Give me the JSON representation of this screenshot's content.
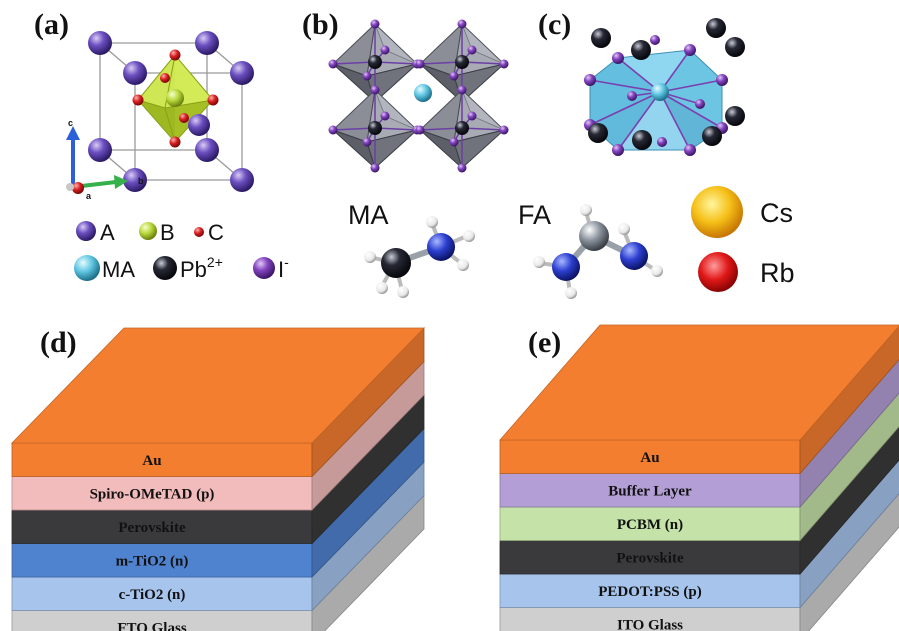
{
  "panels": {
    "a": "(a)",
    "b": "(b)",
    "c": "(c)",
    "d": "(d)",
    "e": "(e)"
  },
  "axes_a": {
    "c": "c",
    "b": "b",
    "a": "a"
  },
  "legend_a": [
    {
      "label": "A",
      "color": "#6a4fb5"
    },
    {
      "label": "B",
      "color": "#b7d63a"
    },
    {
      "label": "C",
      "color": "#d22a2a"
    },
    {
      "label": "MA",
      "color": "#63c5e0"
    },
    {
      "label": "Pb",
      "sup": "2+",
      "color": "#1c1c26"
    },
    {
      "label": "I",
      "sup": "-",
      "color": "#7b3fb0"
    }
  ],
  "molecules": {
    "ma": "MA",
    "fa": "FA",
    "cs": "Cs",
    "rb": "Rb"
  },
  "stack_d": {
    "layers": [
      {
        "label": "Au",
        "color": "#f47e2f"
      },
      {
        "label": "Spiro-OMeTAD (p)",
        "color": "#f3bcbc"
      },
      {
        "label": "Perovskite",
        "color": "#3a3a3c"
      },
      {
        "label": "m-TiO2 (n)",
        "color": "#4f83cf"
      },
      {
        "label": "c-TiO2 (n)",
        "color": "#a6c4ec"
      },
      {
        "label": "FTO Glass",
        "color": "#cfcfcf"
      }
    ]
  },
  "stack_e": {
    "layers": [
      {
        "label": "Au",
        "color": "#f47e2f"
      },
      {
        "label": "Buffer Layer",
        "color": "#b39fd6"
      },
      {
        "label": "PCBM (n)",
        "color": "#c5e2a8"
      },
      {
        "label": "Perovskite",
        "color": "#3a3a3c"
      },
      {
        "label": "PEDOT:PSS (p)",
        "color": "#a6c4ec"
      },
      {
        "label": "ITO Glass",
        "color": "#cfcfcf"
      }
    ]
  }
}
